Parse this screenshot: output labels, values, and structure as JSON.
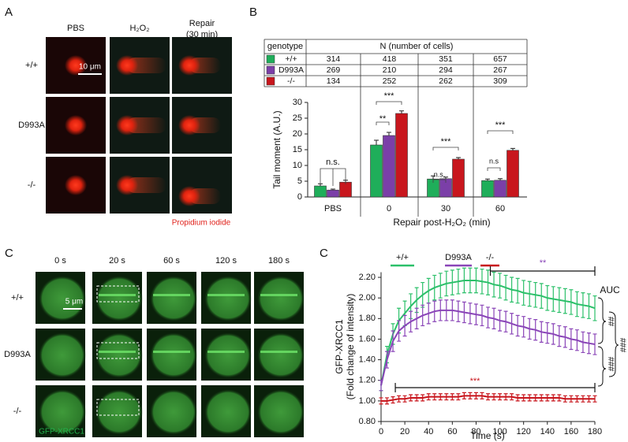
{
  "panel_a": {
    "label": "A",
    "columns": [
      "PBS",
      "H₂O₂",
      "Repair",
      "(30 min)"
    ],
    "rows": [
      "+/+",
      "D993A",
      "-/-"
    ],
    "scale": "10 μm",
    "stain": "Propidium iodide"
  },
  "panel_b": {
    "label": "B"
  },
  "table": {
    "header": [
      "genotype",
      "N (number of cells)"
    ],
    "rows": [
      [
        "+/+",
        "314",
        "418",
        "351",
        "657"
      ],
      [
        "D993A",
        "269",
        "210",
        "294",
        "267"
      ],
      [
        "-/-",
        "134",
        "252",
        "262",
        "309"
      ]
    ]
  },
  "panel_c": {
    "label": "C",
    "columns": [
      "0 s",
      "20 s",
      "60 s",
      "120 s",
      "180 s"
    ],
    "rows": [
      "+/+",
      "D993A",
      "-/-"
    ],
    "scale": "5 μm",
    "stain": "GFP-XRCC1"
  },
  "panel_d": {
    "label": "C"
  },
  "chart_data": [
    {
      "type": "bar",
      "y_label": "Tail moment (A.U.)",
      "x_label": "Repair post-H₂O₂ (min)",
      "categories": [
        "PBS",
        "0",
        "30",
        "60"
      ],
      "series": [
        {
          "name": "+/+",
          "color": "#1fae5a",
          "values": [
            3.5,
            16.5,
            5.7,
            5.2
          ],
          "errors": [
            0.7,
            1.5,
            1.0,
            0.5
          ]
        },
        {
          "name": "D993A",
          "color": "#7b3fa8",
          "values": [
            2.2,
            19.5,
            5.8,
            5.3
          ],
          "errors": [
            0.3,
            1.0,
            0.5,
            0.5
          ]
        },
        {
          "name": "-/-",
          "color": "#c8161d",
          "values": [
            4.7,
            26.5,
            12.0,
            14.8
          ],
          "errors": [
            0.6,
            0.8,
            0.5,
            0.6
          ]
        }
      ],
      "ylim": [
        0,
        30
      ],
      "yticks": [
        0,
        5,
        10,
        15,
        20,
        25,
        30
      ],
      "annotations": [
        "n.s.",
        "**",
        "***",
        "n.s.",
        "***",
        "n.s",
        "***"
      ]
    },
    {
      "type": "line",
      "y_label": [
        "GFP-XRCC1",
        "(Fold change of intensity)"
      ],
      "x_label": "Time (s)",
      "x": [
        0,
        5,
        10,
        15,
        20,
        25,
        30,
        35,
        40,
        45,
        50,
        55,
        60,
        65,
        70,
        75,
        80,
        85,
        90,
        95,
        100,
        105,
        110,
        115,
        120,
        125,
        130,
        135,
        140,
        145,
        150,
        155,
        160,
        165,
        170,
        175,
        180
      ],
      "series": [
        {
          "name": "+/+",
          "color": "#2cc06a",
          "values": [
            1.15,
            1.45,
            1.65,
            1.78,
            1.85,
            1.92,
            1.98,
            2.03,
            2.07,
            2.1,
            2.12,
            2.14,
            2.15,
            2.16,
            2.17,
            2.17,
            2.17,
            2.16,
            2.15,
            2.13,
            2.12,
            2.1,
            2.08,
            2.07,
            2.05,
            2.04,
            2.03,
            2.02,
            2.0,
            1.99,
            1.98,
            1.97,
            1.96,
            1.94,
            1.93,
            1.92,
            1.9
          ],
          "errors": [
            0.05,
            0.08,
            0.1,
            0.12,
            0.12,
            0.12,
            0.12,
            0.12,
            0.12,
            0.12,
            0.12,
            0.12,
            0.12,
            0.12,
            0.12,
            0.12,
            0.12,
            0.12,
            0.12,
            0.12,
            0.12,
            0.12,
            0.12,
            0.12,
            0.12,
            0.12,
            0.12,
            0.12,
            0.12,
            0.12,
            0.12,
            0.12,
            0.12,
            0.12,
            0.12,
            0.12,
            0.12
          ]
        },
        {
          "name": "D993A",
          "color": "#8a45b8",
          "values": [
            1.15,
            1.4,
            1.58,
            1.68,
            1.73,
            1.77,
            1.8,
            1.83,
            1.85,
            1.87,
            1.88,
            1.88,
            1.88,
            1.87,
            1.86,
            1.85,
            1.84,
            1.83,
            1.81,
            1.8,
            1.78,
            1.77,
            1.75,
            1.73,
            1.72,
            1.7,
            1.69,
            1.67,
            1.66,
            1.65,
            1.63,
            1.62,
            1.6,
            1.59,
            1.57,
            1.56,
            1.55
          ],
          "errors": [
            0.05,
            0.08,
            0.1,
            0.1,
            0.1,
            0.1,
            0.1,
            0.1,
            0.1,
            0.1,
            0.1,
            0.1,
            0.1,
            0.1,
            0.1,
            0.1,
            0.1,
            0.1,
            0.1,
            0.1,
            0.1,
            0.1,
            0.1,
            0.1,
            0.1,
            0.1,
            0.1,
            0.1,
            0.1,
            0.1,
            0.1,
            0.1,
            0.1,
            0.1,
            0.1,
            0.1,
            0.1
          ]
        },
        {
          "name": "-/-",
          "color": "#c8161d",
          "values": [
            1.0,
            1.0,
            1.01,
            1.02,
            1.02,
            1.03,
            1.03,
            1.03,
            1.04,
            1.04,
            1.04,
            1.04,
            1.04,
            1.04,
            1.05,
            1.05,
            1.05,
            1.05,
            1.04,
            1.04,
            1.04,
            1.04,
            1.04,
            1.03,
            1.03,
            1.03,
            1.03,
            1.03,
            1.03,
            1.03,
            1.03,
            1.02,
            1.02,
            1.02,
            1.02,
            1.02,
            1.02
          ],
          "errors": [
            0.03,
            0.03,
            0.03,
            0.03,
            0.03,
            0.03,
            0.03,
            0.03,
            0.03,
            0.03,
            0.03,
            0.03,
            0.03,
            0.03,
            0.03,
            0.03,
            0.03,
            0.03,
            0.03,
            0.03,
            0.03,
            0.03,
            0.03,
            0.03,
            0.03,
            0.03,
            0.03,
            0.03,
            0.03,
            0.03,
            0.03,
            0.03,
            0.03,
            0.03,
            0.03,
            0.03,
            0.03
          ]
        }
      ],
      "xlim": [
        0,
        180
      ],
      "xticks": [
        0,
        20,
        40,
        60,
        80,
        100,
        120,
        140,
        160,
        180
      ],
      "ylim": [
        0.8,
        2.25
      ],
      "yticks": [
        {
          "value": 0.8,
          "label": "0.80"
        },
        {
          "value": 1.0,
          "label": "1.00"
        },
        {
          "value": 1.2,
          "label": "1.20"
        },
        {
          "value": 1.4,
          "label": "1.40"
        },
        {
          "value": 1.6,
          "label": "1.60"
        },
        {
          "value": 1.8,
          "label": "1.80"
        },
        {
          "value": 2.0,
          "label": "2.00"
        },
        {
          "value": 2.2,
          "label": "2.20"
        }
      ],
      "annotations": [
        "**",
        "***",
        "AUC",
        "##",
        "###",
        "###"
      ]
    }
  ]
}
